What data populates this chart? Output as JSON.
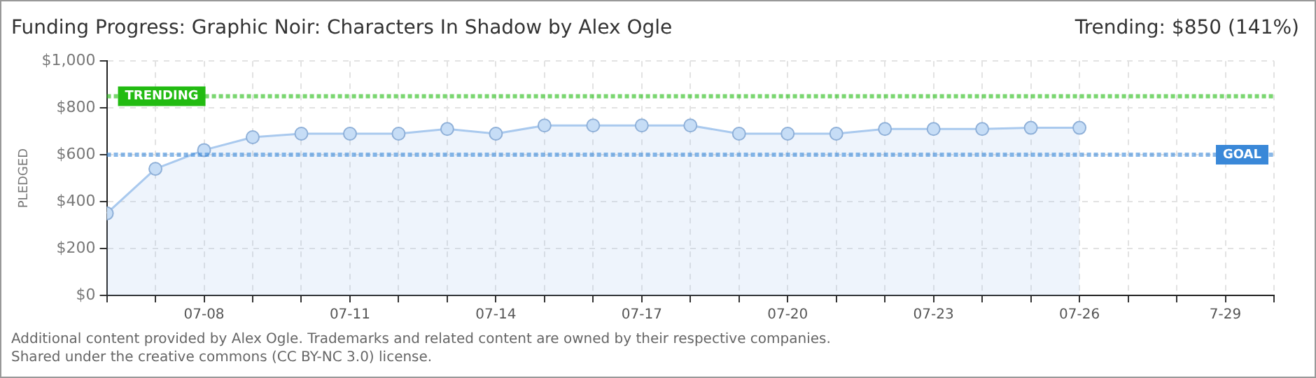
{
  "chart_data": {
    "type": "area",
    "title": "Funding Progress: Graphic Noir: Characters In Shadow by Alex Ogle",
    "subtitle": "Trending: $850 (141%)",
    "ylabel": "PLEDGED",
    "x": [
      "--07-06",
      "--07-07",
      "--07-08",
      "--07-09",
      "--07-10",
      "--07-11",
      "--07-12",
      "--07-13",
      "--07-14",
      "--07-15",
      "--07-16",
      "--07-17",
      "--07-18",
      "--07-19",
      "--07-20",
      "--07-21",
      "--07-22",
      "--07-23",
      "--07-24",
      "--07-25",
      "--07-26"
    ],
    "series": [
      {
        "color": "#a9c9ee",
        "values": [
          350,
          540,
          620,
          675,
          690,
          690,
          690,
          710,
          690,
          725,
          725,
          725,
          725,
          690,
          690,
          690,
          710,
          710,
          710,
          715,
          715
        ]
      }
    ],
    "xlim": [
      "--07-06",
      "--07-30"
    ],
    "xticks": [
      {
        "value": "--07-06",
        "label": null
      },
      {
        "value": "--07-07",
        "label": null
      },
      {
        "value": "--07-08",
        "label": "07-08"
      },
      {
        "value": "--07-09",
        "label": null
      },
      {
        "value": "--07-10",
        "label": null
      },
      {
        "value": "--07-11",
        "label": "07-11"
      },
      {
        "value": "--07-12",
        "label": null
      },
      {
        "value": "--07-13",
        "label": null
      },
      {
        "value": "--07-14",
        "label": "07-14"
      },
      {
        "value": "--07-15",
        "label": null
      },
      {
        "value": "--07-16",
        "label": null
      },
      {
        "value": "--07-17",
        "label": "07-17"
      },
      {
        "value": "--07-18",
        "label": null
      },
      {
        "value": "--07-19",
        "label": null
      },
      {
        "value": "--07-20",
        "label": "07-20"
      },
      {
        "value": "--07-21",
        "label": null
      },
      {
        "value": "--07-22",
        "label": null
      },
      {
        "value": "--07-23",
        "label": "07-23"
      },
      {
        "value": "--07-24",
        "label": null
      },
      {
        "value": "--07-25",
        "label": null
      },
      {
        "value": "--07-26",
        "label": "07-26"
      },
      {
        "value": "--07-27",
        "label": null
      },
      {
        "value": "--07-28",
        "label": null
      },
      {
        "value": "--07-29",
        "label": "7-29"
      },
      {
        "value": "--07-30",
        "label": null
      }
    ],
    "ylim": [
      0,
      1000
    ],
    "yticks": [
      {
        "value": 0,
        "label": "$0"
      },
      {
        "value": 200,
        "label": "$200"
      },
      {
        "value": 400,
        "label": "$400"
      },
      {
        "value": 600,
        "label": "$600"
      },
      {
        "value": 800,
        "label": "$800"
      },
      {
        "value": 1000,
        "label": "$1,000"
      }
    ],
    "ref_lines": [
      {
        "axis": "y",
        "value": 850,
        "label": "TRENDING",
        "color": "#22bb11",
        "line_style": "dotted"
      },
      {
        "axis": "y",
        "value": 600,
        "label": "GOAL",
        "color": "#3a88d8",
        "line_style": "dotted"
      }
    ],
    "annotations": [
      "Additional content provided by Alex Ogle. Trademarks and related content are owned by their respective companies.",
      "Shared under the creative commons (CC BY-NC 3.0) license."
    ],
    "grid": true,
    "legend": false,
    "marker": "circle",
    "line_style": "solid"
  }
}
